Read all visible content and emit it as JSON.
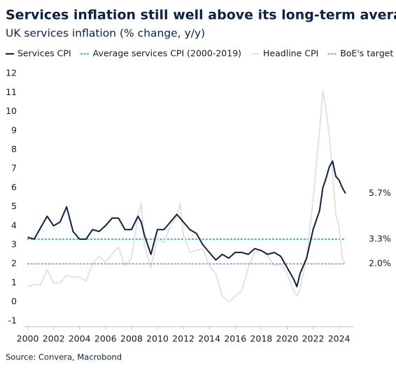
{
  "chart_data": {
    "type": "line",
    "title": "Services inflation still well above its long-term average",
    "subtitle": "UK services inflation (% change, y/y)",
    "source": "Source: Convera, Macrobond",
    "x": [
      2000,
      2000.5,
      2001,
      2001.5,
      2002,
      2002.5,
      2003,
      2003.5,
      2004,
      2004.5,
      2005,
      2005.5,
      2006,
      2006.5,
      2007,
      2007.5,
      2008,
      2008.5,
      2008.75,
      2009,
      2009.5,
      2010,
      2010.5,
      2011,
      2011.5,
      2011.75,
      2012,
      2012.5,
      2013,
      2013.5,
      2014,
      2014.5,
      2015,
      2015.5,
      2016,
      2016.5,
      2017,
      2017.5,
      2018,
      2018.5,
      2019,
      2019.5,
      2020,
      2020.5,
      2020.75,
      2021,
      2021.5,
      2022,
      2022.5,
      2022.75,
      2023,
      2023.25,
      2023.5,
      2023.75,
      2024,
      2024.25,
      2024.5
    ],
    "series": [
      {
        "name": "Services CPI",
        "color": "#0d2240",
        "style": "solid",
        "end_label": "5.7%",
        "values": [
          3.4,
          3.3,
          3.9,
          4.5,
          4.0,
          4.2,
          5.0,
          3.7,
          3.3,
          3.3,
          3.8,
          3.7,
          4.0,
          4.4,
          4.4,
          3.8,
          3.8,
          4.5,
          4.2,
          3.5,
          2.5,
          3.8,
          3.8,
          4.2,
          4.6,
          4.4,
          4.2,
          3.8,
          3.6,
          3.0,
          2.6,
          2.2,
          2.5,
          2.3,
          2.6,
          2.6,
          2.5,
          2.8,
          2.7,
          2.5,
          2.6,
          2.4,
          1.8,
          1.2,
          0.8,
          1.5,
          2.3,
          3.8,
          4.8,
          6.0,
          6.5,
          7.1,
          7.4,
          6.6,
          6.4,
          6.0,
          5.7
        ]
      },
      {
        "name": "Average services CPI (2000-2019)",
        "color": "#2ec4b6",
        "style": "dotted",
        "value": 3.3,
        "end_label": "3.3%"
      },
      {
        "name": "Headline CPI",
        "color": "#e3e3e3",
        "style": "solid",
        "values": [
          0.8,
          0.9,
          0.9,
          1.7,
          1.0,
          1.0,
          1.4,
          1.3,
          1.3,
          1.1,
          2.0,
          2.4,
          2.1,
          2.5,
          2.9,
          1.9,
          2.3,
          4.5,
          5.2,
          3.0,
          1.8,
          3.3,
          3.1,
          4.0,
          4.5,
          5.2,
          3.5,
          2.6,
          2.7,
          2.8,
          1.9,
          1.5,
          0.3,
          0.0,
          0.3,
          0.6,
          1.8,
          2.6,
          2.7,
          2.4,
          1.9,
          2.0,
          1.5,
          0.6,
          0.3,
          0.7,
          2.3,
          5.4,
          9.0,
          11.1,
          10.1,
          8.7,
          6.8,
          4.6,
          4.0,
          2.3,
          2.0
        ]
      },
      {
        "name": "BoE's target",
        "color": "#a89bc9",
        "style": "dotted",
        "value": 2.0,
        "end_label": "2.0%"
      }
    ],
    "xlim": [
      1999.7,
      2025.1
    ],
    "xticks": [
      2000,
      2002,
      2004,
      2006,
      2008,
      2010,
      2012,
      2014,
      2016,
      2018,
      2020,
      2022,
      2024
    ],
    "ylim": [
      -1.3,
      12.3
    ],
    "yticks": [
      -1,
      0,
      1,
      2,
      3,
      4,
      5,
      6,
      7,
      8,
      9,
      10,
      11,
      12
    ],
    "grid": false
  }
}
